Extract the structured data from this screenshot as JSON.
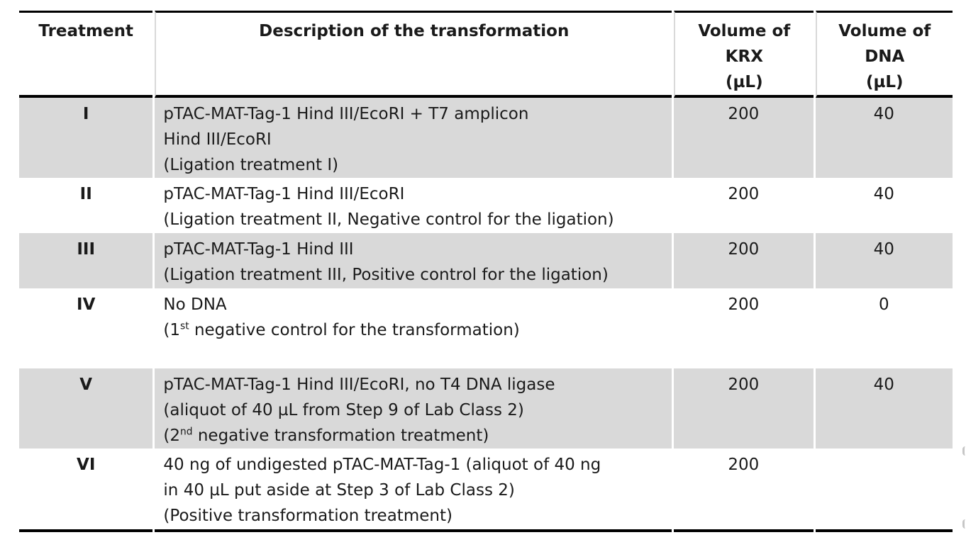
{
  "table": {
    "columns": [
      {
        "label": "Treatment"
      },
      {
        "label": "Description of the transformation"
      },
      {
        "label": "Volume of\nKRX\n(µL)"
      },
      {
        "label": "Volume of\nDNA\n(µL)"
      }
    ],
    "rows": [
      {
        "treatment": "I",
        "shaded": true,
        "description_lines": [
          [
            {
              "t": "pTAC-MAT-Tag-1 Hind III/EcoRI + T7 amplicon"
            }
          ],
          [
            {
              "t": "Hind III/EcoRI"
            }
          ],
          [
            {
              "t": "(Ligation treatment I)"
            }
          ]
        ],
        "krx": "200",
        "dna": "40"
      },
      {
        "treatment": "II",
        "shaded": false,
        "description_lines": [
          [
            {
              "t": "pTAC-MAT-Tag-1 Hind III/EcoRI"
            }
          ],
          [
            {
              "t": "(Ligation treatment II, Negative control for the ligation)"
            }
          ]
        ],
        "krx": "200",
        "dna": "40"
      },
      {
        "treatment": "III",
        "shaded": true,
        "description_lines": [
          [
            {
              "t": "pTAC-MAT-Tag-1 Hind III"
            }
          ],
          [
            {
              "t": "(Ligation treatment III, Positive control for the ligation)"
            }
          ]
        ],
        "krx": "200",
        "dna": "40"
      },
      {
        "treatment": "IV",
        "shaded": false,
        "description_lines": [
          [
            {
              "t": "No DNA"
            }
          ],
          [
            {
              "t": "(1"
            },
            {
              "t": "st",
              "sup": true
            },
            {
              "t": " negative control for the transformation)"
            }
          ]
        ],
        "krx": "200",
        "dna": "0"
      },
      {
        "treatment": "V",
        "shaded": true,
        "description_lines": [
          [
            {
              "t": "pTAC-MAT-Tag-1 Hind III/EcoRI, no T4 DNA ligase"
            }
          ],
          [
            {
              "t": "(aliquot of 40 µL from Step 9 of Lab Class 2)"
            }
          ],
          [
            {
              "t": "(2"
            },
            {
              "t": "nd",
              "sup": true
            },
            {
              "t": " negative transformation treatment)"
            }
          ]
        ],
        "krx": "200",
        "dna": "40"
      },
      {
        "treatment": "VI",
        "shaded": false,
        "description_lines": [
          [
            {
              "t": "40 ng of undigested pTAC-MAT-Tag-1 (aliquot of 40 ng"
            }
          ],
          [
            {
              "t": "in 40 µL put aside at Step 3 of Lab Class 2)"
            }
          ],
          [
            {
              "t": "(Positive transformation treatment)"
            }
          ]
        ],
        "krx": "200",
        "dna": ""
      }
    ],
    "colors": {
      "row_shade": "#d9d9d9",
      "rule": "#000000"
    }
  }
}
